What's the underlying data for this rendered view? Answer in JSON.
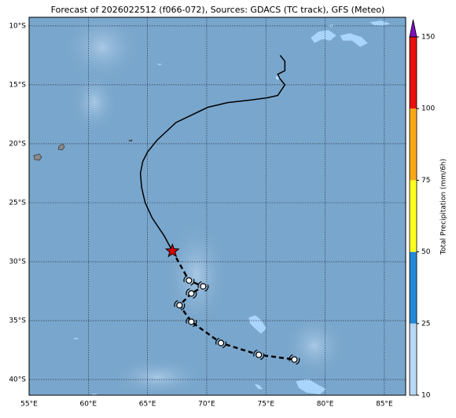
{
  "map": {
    "title": "Forecast of 2026022512 (f066-072), Sources: GDACS (TC track), GFS (Meteo)",
    "xlim": [
      55,
      86.8
    ],
    "ylim": [
      -41.33,
      -9.27
    ],
    "xticks": [
      {
        "value": 55,
        "label": "55°E"
      },
      {
        "value": 60,
        "label": "60°E"
      },
      {
        "value": 65,
        "label": "65°E"
      },
      {
        "value": 70,
        "label": "70°E"
      },
      {
        "value": 75,
        "label": "75°E"
      },
      {
        "value": 80,
        "label": "80°E"
      },
      {
        "value": 85,
        "label": "85°E"
      }
    ],
    "yticks": [
      {
        "value": -10,
        "label": "10°S"
      },
      {
        "value": -15,
        "label": "15°S"
      },
      {
        "value": -20,
        "label": "20°S"
      },
      {
        "value": -25,
        "label": "25°S"
      },
      {
        "value": -30,
        "label": "30°S"
      },
      {
        "value": -35,
        "label": "35°S"
      },
      {
        "value": -40,
        "label": "40°S"
      }
    ],
    "grid": true,
    "track": {
      "past": {
        "lon": [
          76.2,
          76.6,
          76.6,
          76.0,
          76.2,
          76.6,
          76.0,
          75.1,
          73.6,
          71.8,
          70.1,
          67.4,
          65.8,
          65.0,
          64.6,
          64.4,
          64.5,
          64.8,
          65.4,
          66.4,
          67.1
        ],
        "lat": [
          -12.5,
          -13.0,
          -13.8,
          -14.1,
          -14.5,
          -15.0,
          -15.9,
          -16.1,
          -16.3,
          -16.5,
          -16.9,
          -18.2,
          -19.7,
          -20.7,
          -21.5,
          -22.5,
          -23.7,
          -25.0,
          -26.3,
          -27.8,
          -29.1
        ]
      },
      "current": {
        "lon": 67.1,
        "lat": -29.1,
        "color": "#dd0000"
      },
      "forecast": {
        "lon": [
          67.1,
          68.5,
          69.7,
          68.7,
          67.7,
          68.7,
          71.2,
          74.4,
          77.4
        ],
        "lat": [
          -29.1,
          -31.6,
          -32.1,
          -32.7,
          -33.7,
          -35.1,
          -36.9,
          -37.9,
          -38.3
        ]
      }
    },
    "colorbar": {
      "label": "Total Precipitation (mm/6h)",
      "ticks": [
        10,
        25,
        50,
        75,
        100,
        150
      ],
      "colors": [
        "#b8d8f4",
        "#2288d8",
        "#ffff20",
        "#f8a818",
        "#e81010"
      ],
      "extend_color": "#8010c0"
    }
  }
}
